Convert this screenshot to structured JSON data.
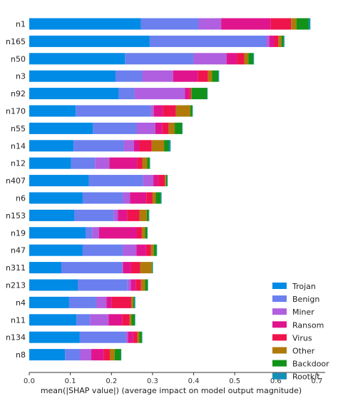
{
  "chart_data": {
    "type": "bar",
    "orientation": "horizontal",
    "stacked": true,
    "xlabel": "mean(|SHAP value|) (average impact on model output magnitude)",
    "ylabel": "",
    "xlim": [
      0.0,
      0.72
    ],
    "xticks": [
      "0.0",
      "0.1",
      "0.2",
      "0.3",
      "0.4",
      "0.5",
      "0.6",
      "0.7"
    ],
    "grid": false,
    "legend_position": "bottom-right",
    "categories": [
      "n1",
      "n165",
      "n50",
      "n3",
      "n92",
      "n170",
      "n55",
      "n14",
      "n12",
      "n407",
      "n6",
      "n153",
      "n19",
      "n47",
      "n311",
      "n213",
      "n4",
      "n11",
      "n134",
      "n8"
    ],
    "series": [
      {
        "name": "Trojan",
        "color": "#008BE6",
        "values": [
          0.272,
          0.293,
          0.233,
          0.21,
          0.218,
          0.113,
          0.155,
          0.108,
          0.102,
          0.145,
          0.13,
          0.11,
          0.137,
          0.13,
          0.078,
          0.118,
          0.097,
          0.115,
          0.123,
          0.087
        ]
      },
      {
        "name": "Benign",
        "color": "#6B7FEE",
        "values": [
          0.14,
          0.283,
          0.167,
          0.065,
          0.038,
          0.183,
          0.107,
          0.122,
          0.058,
          0.132,
          0.098,
          0.095,
          0.016,
          0.098,
          0.148,
          0.121,
          0.066,
          0.033,
          0.112,
          0.037
        ]
      },
      {
        "name": "Miner",
        "color": "#B05FE0",
        "values": [
          0.055,
          0.008,
          0.08,
          0.075,
          0.123,
          0.007,
          0.045,
          0.025,
          0.035,
          0.025,
          0.017,
          0.011,
          0.017,
          0.033,
          0.002,
          0.008,
          0.025,
          0.045,
          0.005,
          0.027
        ]
      },
      {
        "name": "Ransom",
        "color": "#E0158E",
        "values": [
          0.12,
          0.012,
          0.025,
          0.06,
          0.01,
          0.022,
          0.017,
          0.013,
          0.068,
          0.013,
          0.04,
          0.022,
          0.092,
          0.023,
          0.02,
          0.012,
          0.013,
          0.033,
          0.013,
          0.03
        ]
      },
      {
        "name": "Virus",
        "color": "#F0144C",
        "values": [
          0.05,
          0.01,
          0.018,
          0.025,
          0.004,
          0.032,
          0.015,
          0.03,
          0.012,
          0.015,
          0.015,
          0.03,
          0.012,
          0.012,
          0.022,
          0.013,
          0.047,
          0.018,
          0.01,
          0.015
        ]
      },
      {
        "name": "Other",
        "color": "#B07A0A",
        "values": [
          0.013,
          0.008,
          0.01,
          0.01,
          0.002,
          0.035,
          0.015,
          0.03,
          0.012,
          0.003,
          0.008,
          0.018,
          0.008,
          0.007,
          0.028,
          0.01,
          0.005,
          0.005,
          0.005,
          0.012
        ]
      },
      {
        "name": "Backdoor",
        "color": "#13921A",
        "values": [
          0.03,
          0.005,
          0.012,
          0.015,
          0.038,
          0.005,
          0.018,
          0.012,
          0.006,
          0.003,
          0.012,
          0.005,
          0.005,
          0.007,
          0.002,
          0.006,
          0.003,
          0.008,
          0.006,
          0.015
        ]
      },
      {
        "name": "Rootkit",
        "color": "#1490B8",
        "values": [
          0.004,
          0.002,
          0.002,
          0.002,
          0.001,
          0.001,
          0.001,
          0.004,
          0.001,
          0.001,
          0.002,
          0.001,
          0.001,
          0.001,
          0.001,
          0.001,
          0.002,
          0.001,
          0.001,
          0.001
        ]
      }
    ]
  }
}
